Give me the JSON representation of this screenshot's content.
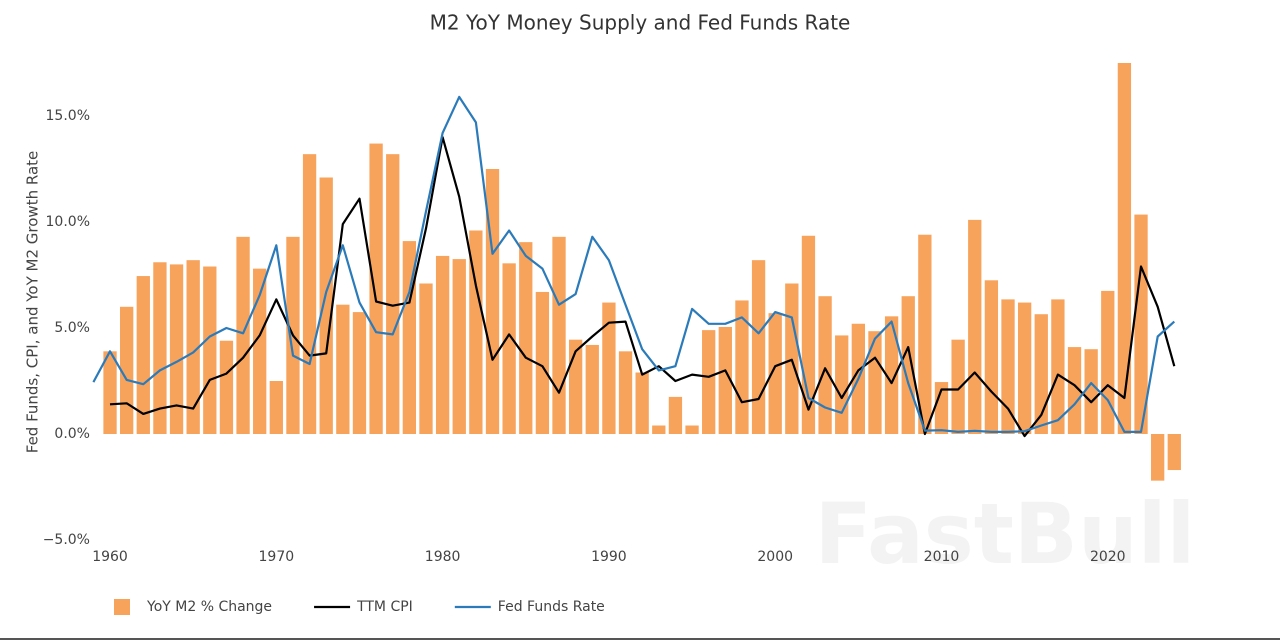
{
  "chart_data": {
    "type": "combo",
    "title": "M2 YoY Money Supply and Fed Funds Rate",
    "y_label": "Fed Funds, CPI, and YoY M2 Growth Rate",
    "watermark": "FastBull",
    "legend": "bottom-left",
    "grid": false,
    "x": [
      1959,
      1960,
      1961,
      1962,
      1963,
      1964,
      1965,
      1966,
      1967,
      1968,
      1969,
      1970,
      1971,
      1972,
      1973,
      1974,
      1975,
      1976,
      1977,
      1978,
      1979,
      1980,
      1981,
      1982,
      1983,
      1984,
      1985,
      1986,
      1987,
      1988,
      1989,
      1990,
      1991,
      1992,
      1993,
      1994,
      1995,
      1996,
      1997,
      1998,
      1999,
      2000,
      2001,
      2002,
      2003,
      2004,
      2005,
      2006,
      2007,
      2008,
      2009,
      2010,
      2011,
      2012,
      2013,
      2014,
      2015,
      2016,
      2017,
      2018,
      2019,
      2020,
      2021,
      2022,
      2023,
      2024
    ],
    "xlim": [
      1959,
      2024.8
    ],
    "xticks": [
      1960,
      1970,
      1980,
      1990,
      2000,
      2010,
      2020
    ],
    "ylim": [
      -5.25,
      18
    ],
    "yticks": [
      {
        "value": -5,
        "label": "−5.0%"
      },
      {
        "value": 0,
        "label": "0.0%"
      },
      {
        "value": 5,
        "label": "5.0%"
      },
      {
        "value": 10,
        "label": "10.0%"
      },
      {
        "value": 15,
        "label": "15.0%"
      }
    ],
    "series": [
      {
        "name": "YoY M2 % Change",
        "type": "bar",
        "color": "#f7a35c",
        "values": [
          null,
          3.9,
          6.0,
          7.45,
          8.1,
          8.0,
          8.2,
          7.9,
          4.4,
          9.3,
          7.8,
          2.5,
          9.3,
          13.2,
          12.1,
          6.1,
          5.75,
          13.7,
          13.2,
          9.1,
          7.1,
          8.4,
          8.25,
          9.6,
          12.5,
          8.05,
          9.05,
          6.7,
          9.3,
          4.45,
          4.2,
          6.2,
          3.9,
          2.9,
          0.4,
          1.75,
          0.4,
          4.9,
          5.05,
          6.3,
          8.2,
          5.7,
          7.1,
          9.35,
          6.5,
          4.65,
          5.2,
          4.85,
          5.55,
          6.5,
          9.4,
          2.45,
          4.45,
          10.1,
          7.25,
          6.35,
          6.2,
          5.65,
          6.35,
          4.1,
          4.0,
          6.75,
          17.5,
          10.35,
          -2.2,
          -1.7
        ]
      },
      {
        "name": "TTM CPI",
        "type": "line",
        "color": "#000000",
        "values": [
          null,
          1.4,
          1.45,
          0.95,
          1.2,
          1.35,
          1.2,
          2.55,
          2.85,
          3.6,
          4.65,
          6.35,
          4.65,
          3.7,
          3.8,
          9.9,
          11.1,
          6.25,
          6.05,
          6.2,
          9.7,
          14.0,
          11.2,
          7.0,
          3.5,
          4.7,
          3.6,
          3.2,
          1.95,
          3.9,
          4.6,
          5.25,
          5.3,
          2.8,
          3.2,
          2.5,
          2.8,
          2.7,
          3.0,
          1.5,
          1.65,
          3.2,
          3.5,
          1.15,
          3.1,
          1.7,
          3.0,
          3.6,
          2.4,
          4.1,
          0.0,
          2.1,
          2.1,
          2.9,
          2.0,
          1.2,
          -0.1,
          0.9,
          2.8,
          2.3,
          1.5,
          2.3,
          1.7,
          7.9,
          6.0,
          3.2
        ]
      },
      {
        "name": "Fed Funds Rate",
        "type": "line",
        "color": "#2b7bba",
        "values": [
          2.45,
          3.9,
          2.55,
          2.35,
          3.0,
          3.4,
          3.85,
          4.6,
          5.0,
          4.75,
          6.55,
          8.9,
          3.7,
          3.3,
          6.7,
          8.9,
          6.2,
          4.8,
          4.7,
          6.7,
          10.5,
          14.2,
          15.9,
          14.7,
          8.5,
          9.6,
          8.4,
          7.8,
          6.1,
          6.6,
          9.3,
          8.2,
          6.1,
          4.0,
          3.0,
          3.2,
          5.9,
          5.2,
          5.2,
          5.5,
          4.75,
          5.75,
          5.5,
          1.7,
          1.25,
          1.0,
          2.6,
          4.5,
          5.3,
          2.4,
          0.16,
          0.18,
          0.1,
          0.15,
          0.1,
          0.1,
          0.13,
          0.4,
          0.65,
          1.4,
          2.4,
          1.6,
          0.1,
          0.1,
          4.6,
          5.3
        ]
      }
    ]
  }
}
